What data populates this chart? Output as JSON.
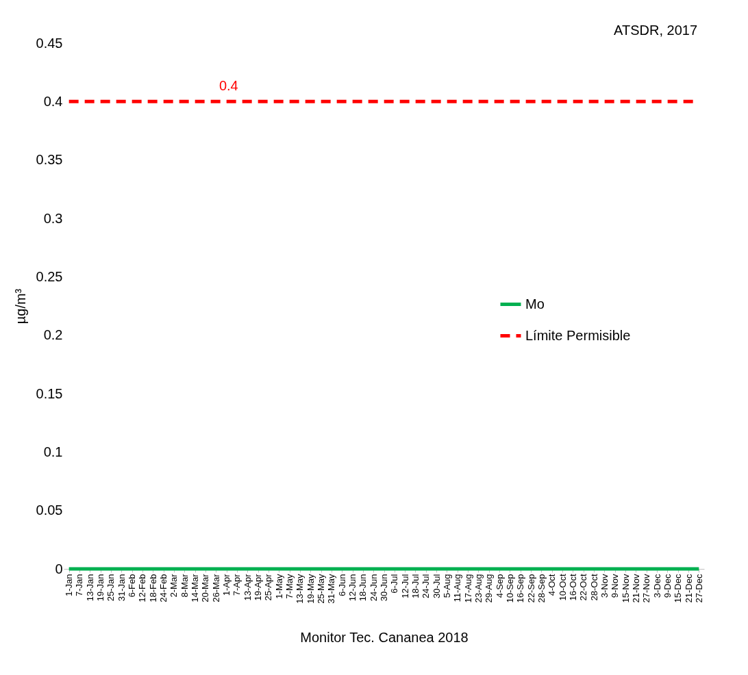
{
  "chart_data": {
    "type": "line",
    "xlabel": "Monitor Tec. Cananea 2018",
    "ylabel": "µg/m³",
    "categories": [
      "1-Jan",
      "7-Jan",
      "13-Jan",
      "19-Jan",
      "25-Jan",
      "31-Jan",
      "6-Feb",
      "12-Feb",
      "18-Feb",
      "24-Feb",
      "2-Mar",
      "8-Mar",
      "14-Mar",
      "20-Mar",
      "26-Mar",
      "1-Apr",
      "7-Apr",
      "13-Apr",
      "19-Apr",
      "25-Apr",
      "1-May",
      "7-May",
      "13-May",
      "19-May",
      "25-May",
      "31-May",
      "6-Jun",
      "12-Jun",
      "18-Jun",
      "24-Jun",
      "30-Jun",
      "6-Jul",
      "12-Jul",
      "18-Jul",
      "24-Jul",
      "30-Jul",
      "5-Aug",
      "11-Aug",
      "17-Aug",
      "23-Aug",
      "29-Aug",
      "4-Sep",
      "10-Sep",
      "16-Sep",
      "22-Sep",
      "28-Sep",
      "4-Oct",
      "10-Oct",
      "16-Oct",
      "22-Oct",
      "28-Oct",
      "3-Nov",
      "9-Nov",
      "15-Nov",
      "21-Nov",
      "27-Nov",
      "3-Dec",
      "9-Dec",
      "15-Dec",
      "21-Dec",
      "27-Dec"
    ],
    "series": [
      {
        "name": "Mo",
        "color": "#00b050",
        "line_style": "solid",
        "values": [
          0,
          0,
          0,
          0,
          0,
          0,
          0,
          0,
          0,
          0,
          0,
          0,
          0,
          0,
          0,
          0,
          0,
          0,
          0,
          0,
          0,
          0,
          0,
          0,
          0,
          0,
          0,
          0,
          0,
          0,
          0,
          0,
          0,
          0,
          0,
          0,
          0,
          0,
          0,
          0,
          0,
          0,
          0,
          0,
          0,
          0,
          0,
          0,
          0,
          0,
          0,
          0,
          0,
          0,
          0,
          0,
          0,
          0,
          0,
          0,
          0
        ]
      },
      {
        "name": "Límite Permisible",
        "color": "#ff0000",
        "line_style": "dashed",
        "values": [
          0.4,
          0.4,
          0.4,
          0.4,
          0.4,
          0.4,
          0.4,
          0.4,
          0.4,
          0.4,
          0.4,
          0.4,
          0.4,
          0.4,
          0.4,
          0.4,
          0.4,
          0.4,
          0.4,
          0.4,
          0.4,
          0.4,
          0.4,
          0.4,
          0.4,
          0.4,
          0.4,
          0.4,
          0.4,
          0.4,
          0.4,
          0.4,
          0.4,
          0.4,
          0.4,
          0.4,
          0.4,
          0.4,
          0.4,
          0.4,
          0.4,
          0.4,
          0.4,
          0.4,
          0.4,
          0.4,
          0.4,
          0.4,
          0.4,
          0.4,
          0.4,
          0.4,
          0.4,
          0.4,
          0.4,
          0.4,
          0.4,
          0.4,
          0.4,
          0.4,
          0.4
        ]
      }
    ],
    "ylim": [
      0,
      0.45
    ],
    "yticks": [
      0,
      0.05,
      0.1,
      0.15,
      0.2,
      0.25,
      0.3,
      0.35,
      0.4,
      0.45
    ],
    "grid": false,
    "legend": "right",
    "marker": "none",
    "annotations": [
      "ATSDR, 2017",
      {
        "text": "0.4",
        "x": "20-Mar",
        "y": 0.4
      }
    ]
  }
}
